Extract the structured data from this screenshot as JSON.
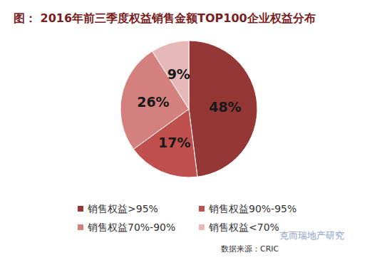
{
  "chart_data": {
    "type": "pie",
    "title": "图： 2016年前三季度权益销售金额TOP100企业权益分布",
    "categories": [
      "销售权益>95%",
      "销售权益90%-95%",
      "销售权益70%-90%",
      "销售权益<70%"
    ],
    "values": [
      48,
      17,
      26,
      9
    ],
    "value_labels": [
      "48%",
      "17%",
      "26%",
      "9%"
    ],
    "colors": [
      "#953735",
      "#c0504d",
      "#d4807e",
      "#e6b9b8"
    ],
    "data_labels": true,
    "legend": "bottom",
    "annotations": [
      "克而瑞地产研究",
      "数据来源：CRIC"
    ]
  }
}
